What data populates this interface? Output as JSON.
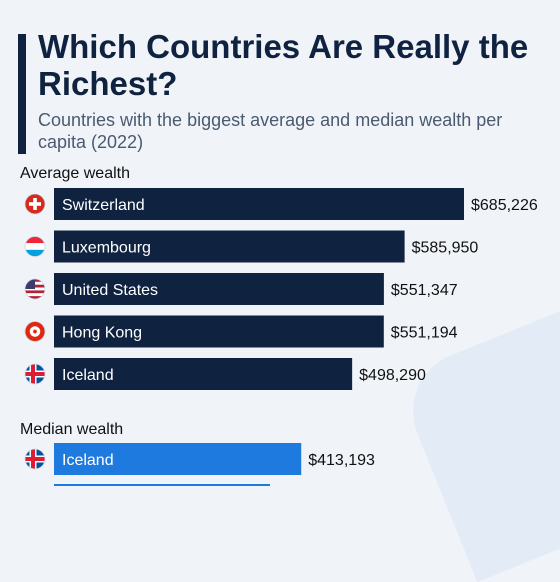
{
  "header": {
    "title": "Which Countries Are Really the Richest?",
    "subtitle": "Countries with the biggest average and median wealth per capita (2022)"
  },
  "chart_data": [
    {
      "type": "bar",
      "orientation": "horizontal",
      "label": "Average wealth",
      "categories": [
        "Switzerland",
        "Luxembourg",
        "United States",
        "Hong Kong",
        "Iceland"
      ],
      "values": [
        685226,
        585950,
        551347,
        551194,
        498290
      ],
      "value_labels": [
        "$685,226",
        "$585,950",
        "$551,347",
        "$551,194",
        "$498,290"
      ],
      "flags": [
        "switzerland-flag-icon",
        "luxembourg-flag-icon",
        "usa-flag-icon",
        "hong-kong-flag-icon",
        "iceland-flag-icon"
      ],
      "color": "#0f2341"
    },
    {
      "type": "bar",
      "orientation": "horizontal",
      "label": "Median wealth",
      "categories": [
        "Iceland"
      ],
      "values": [
        413193
      ],
      "value_labels": [
        "$413,193"
      ],
      "flags": [
        "iceland-flag-icon"
      ],
      "color": "#1f7ae0"
    }
  ]
}
